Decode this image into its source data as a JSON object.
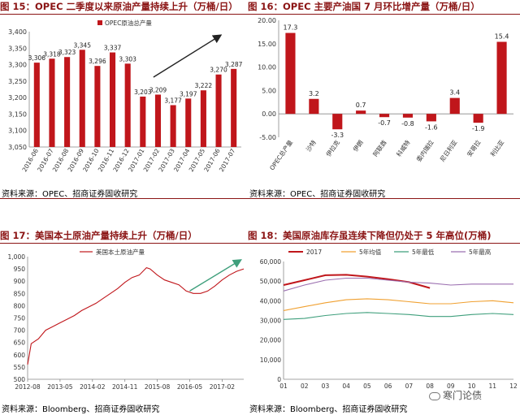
{
  "panels": [
    {
      "title": "图 15：OPEC 二季度以来原油产量持续上升（万桶/日）",
      "source": "资料来源：OPEC、招商证券固收研究",
      "chart_data": {
        "type": "bar",
        "legend": [
          "OPEC原油总产量"
        ],
        "legend_position": "top",
        "categories": [
          "2016-06",
          "2016-07",
          "2016-08",
          "2016-09",
          "2016-10",
          "2016-11",
          "2016-12",
          "2017-01",
          "2017-02",
          "2017-03",
          "2017-04",
          "2017-05",
          "2017-06",
          "2017-07"
        ],
        "values": [
          3306,
          3318,
          3323,
          3345,
          3296,
          3337,
          3303,
          3203,
          3209,
          3177,
          3197,
          3222,
          3270,
          3287
        ],
        "ylim": [
          3050,
          3400
        ],
        "yticks": [
          3050,
          3100,
          3150,
          3200,
          3250,
          3300,
          3350,
          3400
        ],
        "ytick_labels": [
          "3,050",
          "3,100",
          "3,150",
          "3,200",
          "3,250",
          "3,300",
          "3,350",
          "3,400"
        ],
        "data_labels": [
          "3,306",
          "3,318",
          "3,323",
          "3,345",
          "3,296",
          "3,337",
          "3,303",
          "3,203",
          "3,209",
          "3,177",
          "3,197",
          "3,222",
          "3,270",
          "3,287"
        ],
        "annotation": "upward-arrow",
        "bar_color": "#c0161b"
      }
    },
    {
      "title": "图 16：OPEC 主要产油国 7 月环比增产量（万桶/日）",
      "source": "资料来源：OPEC、招商证券固收研究",
      "chart_data": {
        "type": "bar",
        "categories": [
          "OPEC总产量",
          "沙特",
          "伊拉克",
          "伊朗",
          "阿联酋",
          "科威特",
          "委内瑞拉",
          "尼日利亚",
          "安哥拉",
          "利比亚"
        ],
        "values": [
          17.3,
          3.2,
          -3.3,
          0.7,
          -0.7,
          -0.8,
          -1.6,
          3.4,
          -1.9,
          15.4
        ],
        "data_labels": [
          "17.3",
          "3.2",
          "-3.3",
          "0.7",
          "-0.7",
          "-0.8",
          "-1.6",
          "3.4",
          "-1.9",
          "15.4"
        ],
        "ylim": [
          -5,
          20
        ],
        "yticks": [
          -5,
          0,
          5,
          10,
          15,
          20
        ],
        "ytick_labels": [
          "-5.00",
          "0.00",
          "5.00",
          "10.00",
          "15.00",
          "20.00"
        ],
        "bar_color": "#c0161b"
      }
    },
    {
      "title": "图 17：美国本土原油产量持续上升（万桶/日）",
      "source": "资料来源：Bloomberg、招商证券固收研究",
      "chart_data": {
        "type": "line",
        "legend": [
          "美国本土原油产量"
        ],
        "legend_position": "top",
        "series": [
          {
            "name": "美国本土原油产量",
            "x": [
              "2012-08",
              "2012-09",
              "2012-11",
              "2013-01",
              "2013-03",
              "2013-05",
              "2013-07",
              "2013-09",
              "2013-11",
              "2014-01",
              "2014-03",
              "2014-05",
              "2014-07",
              "2014-09",
              "2014-11",
              "2015-01",
              "2015-03",
              "2015-05",
              "2015-06",
              "2015-08",
              "2015-10",
              "2015-12",
              "2016-02",
              "2016-04",
              "2016-06",
              "2016-08",
              "2016-10",
              "2016-12",
              "2017-02",
              "2017-04",
              "2017-06",
              "2017-08"
            ],
            "values": [
              560,
              645,
              665,
              700,
              715,
              730,
              745,
              760,
              780,
              795,
              810,
              830,
              850,
              870,
              895,
              915,
              925,
              955,
              950,
              925,
              905,
              895,
              885,
              860,
              850,
              850,
              860,
              880,
              905,
              925,
              940,
              950
            ]
          }
        ],
        "ylim": [
          500,
          1000
        ],
        "yticks": [
          500,
          550,
          600,
          650,
          700,
          750,
          800,
          850,
          900,
          950,
          1000
        ],
        "ytick_labels": [
          "500",
          "550",
          "600",
          "650",
          "700",
          "750",
          "800",
          "850",
          "900",
          "950",
          "1,000"
        ],
        "xtick_labels": [
          "2012-08",
          "2013-05",
          "2014-02",
          "2014-11",
          "2015-08",
          "2016-05",
          "2017-02"
        ],
        "annotation": "upward-arrow",
        "color": "#c0161b"
      }
    },
    {
      "title": "图 18：美国原油库存虽连续下降但仍处于 5 年高位(万桶)",
      "source": "资料来源：Bloomberg、招商证券固收研究",
      "chart_data": {
        "type": "line",
        "legend_position": "top",
        "x": [
          "01",
          "02",
          "03",
          "04",
          "05",
          "06",
          "07",
          "08",
          "09",
          "10",
          "11",
          "12"
        ],
        "series": [
          {
            "name": "2017",
            "color": "#c0161b",
            "values": [
              48000,
              50500,
              53000,
              53200,
              52300,
              51000,
              49500,
              46500,
              null,
              null,
              null,
              null
            ]
          },
          {
            "name": "5年均值",
            "color": "#f0a030",
            "values": [
              35000,
              37000,
              39000,
              40500,
              41000,
              40500,
              39500,
              38500,
              38500,
              39500,
              40000,
              39000
            ]
          },
          {
            "name": "5年最低",
            "color": "#3f9f7c",
            "values": [
              30500,
              31000,
              32500,
              33500,
              34000,
              33500,
              33000,
              32000,
              32000,
              33000,
              33500,
              33000
            ]
          },
          {
            "name": "5年最高",
            "color": "#9b6fb0",
            "values": [
              45000,
              48000,
              50500,
              51500,
              51500,
              50500,
              49500,
              49000,
              48000,
              48500,
              48500,
              48500
            ]
          }
        ],
        "ylim": [
          0,
          60000
        ],
        "yticks": [
          0,
          10000,
          20000,
          30000,
          40000,
          50000,
          60000
        ],
        "ytick_labels": [
          "0",
          "10,000",
          "20,000",
          "30,000",
          "40,000",
          "50,000",
          "60,000"
        ]
      }
    }
  ],
  "watermark": "寒门论债"
}
